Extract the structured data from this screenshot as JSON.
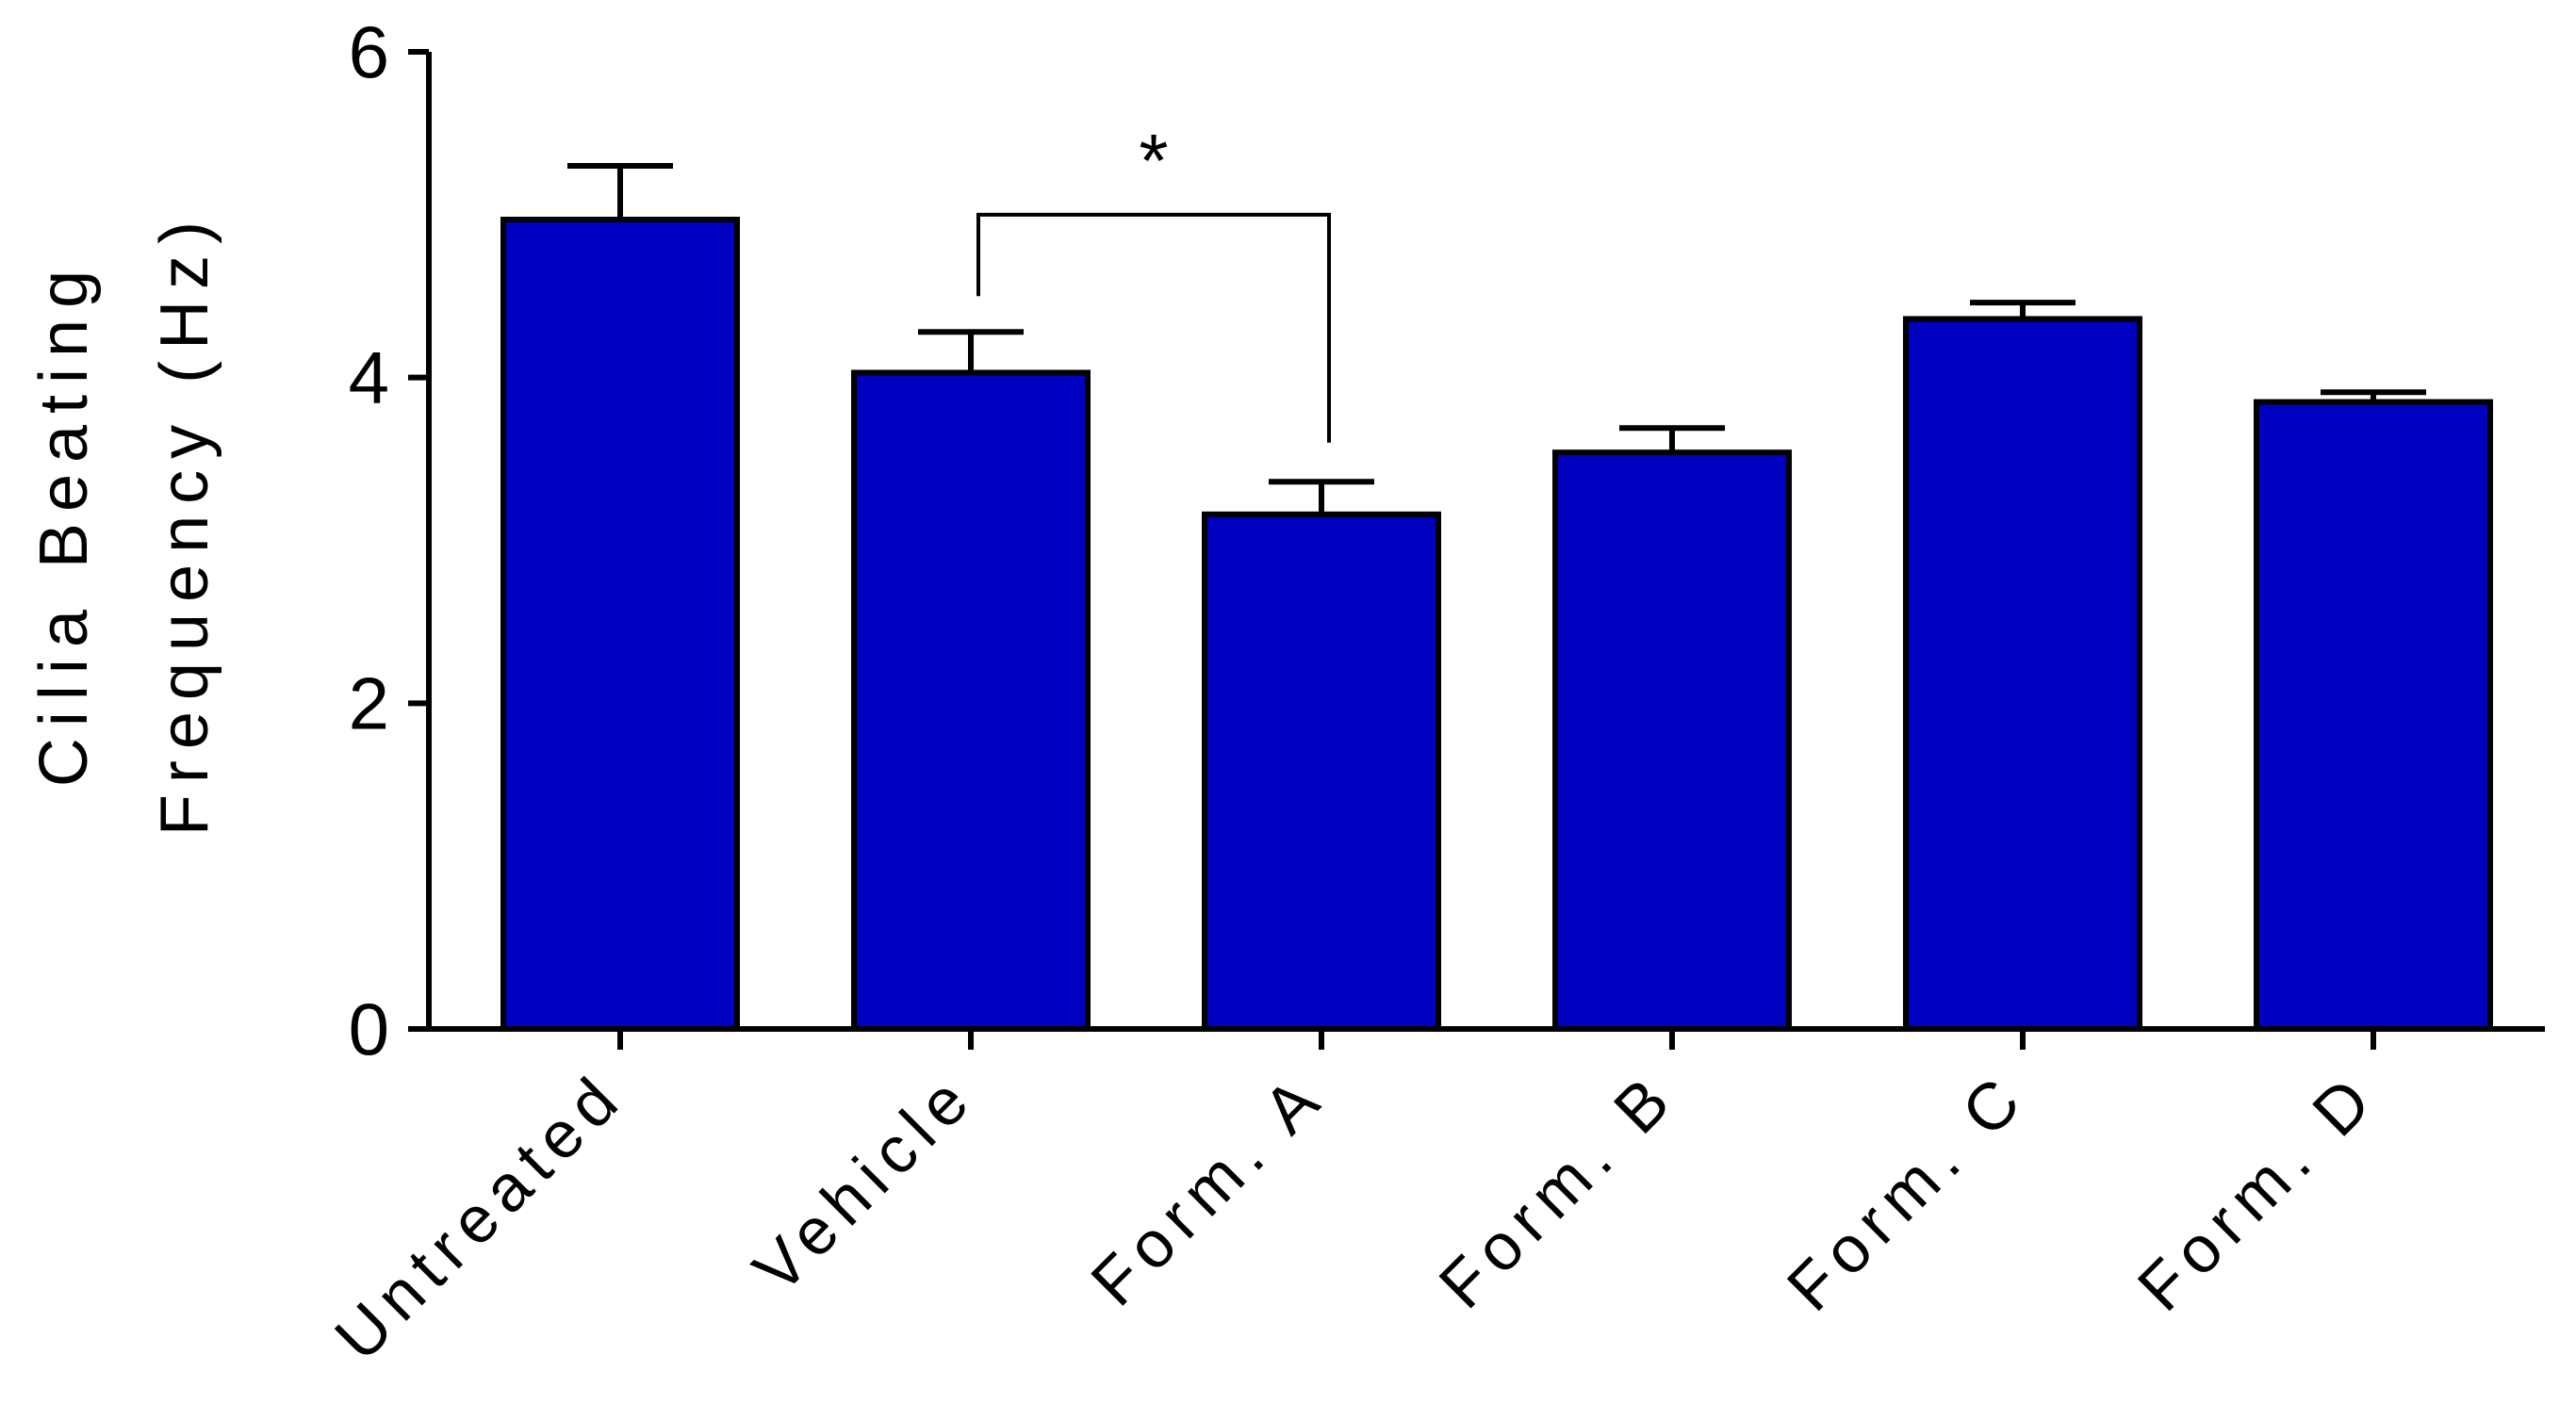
{
  "chart_data": {
    "type": "bar",
    "title": "",
    "xlabel": "",
    "ylabel_lines": [
      "Cilia Beating",
      "Frequency (Hz)"
    ],
    "categories": [
      "Untreated",
      "Vehicle",
      "Form. A",
      "Form. B",
      "Form. C",
      "Form. D"
    ],
    "values": [
      4.97,
      4.03,
      3.16,
      3.54,
      4.36,
      3.85
    ],
    "errors": [
      0.33,
      0.25,
      0.2,
      0.15,
      0.1,
      0.06
    ],
    "ylim": [
      0,
      6
    ],
    "yticks": [
      0,
      2,
      4,
      6
    ],
    "grid": false,
    "bar_color": "#0000c0",
    "significance": [
      {
        "from": "Vehicle",
        "to": "Form. A",
        "label": "*"
      }
    ]
  }
}
